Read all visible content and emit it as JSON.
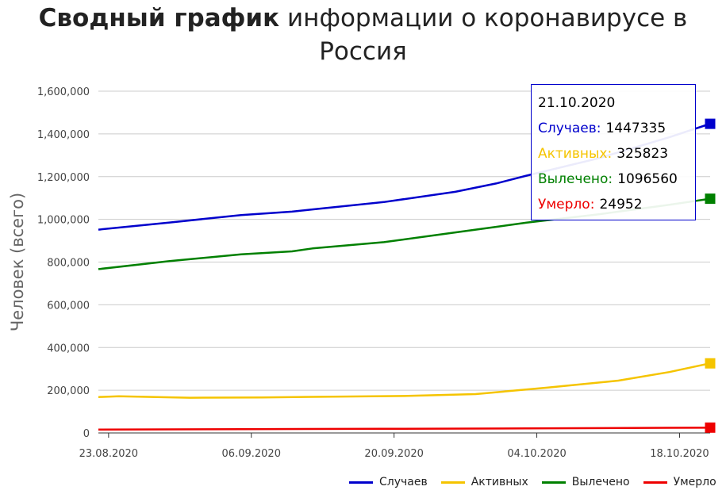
{
  "title": {
    "bold": "Сводный график",
    "rest": " информации о коронавирусе в Россия"
  },
  "tooltip": {
    "date": "21.10.2020",
    "rows": [
      {
        "label": "Случаев:",
        "value": "1447335",
        "color": "#0000cc"
      },
      {
        "label": "Активных:",
        "value": "325823",
        "color": "#f5c400"
      },
      {
        "label": "Вылечено:",
        "value": "1096560",
        "color": "#008000"
      },
      {
        "label": "Умерло:",
        "value": "24952",
        "color": "#ee0000"
      }
    ]
  },
  "chart_data": {
    "type": "line",
    "ylabel": "Человек (всего)",
    "ylim": [
      0,
      1600000
    ],
    "yticks": [
      0,
      200000,
      400000,
      600000,
      800000,
      1000000,
      1200000,
      1400000,
      1600000
    ],
    "ytick_labels": [
      "0",
      "200,000",
      "400,000",
      "600,000",
      "800,000",
      "1,000,000",
      "1,200,000",
      "1,400,000",
      "1,600,000"
    ],
    "xticks": [
      "23.08.2020",
      "06.09.2020",
      "20.09.2020",
      "04.10.2020",
      "18.10.2020"
    ],
    "x_tick_dates": [
      "2020-08-23",
      "2020-09-06",
      "2020-09-20",
      "2020-10-04",
      "2020-10-18"
    ],
    "x_start": "2020-08-22",
    "x_end": "2020-10-21",
    "grid": "horizontal",
    "legend_position": "bottom-right",
    "series": [
      {
        "name": "Случаев",
        "color": "#0000cc",
        "points": [
          [
            "2020-08-22",
            951897
          ],
          [
            "2020-08-29",
            985346
          ],
          [
            "2020-09-05",
            1020310
          ],
          [
            "2020-09-10",
            1036197
          ],
          [
            "2020-09-12",
            1046370
          ],
          [
            "2020-09-19",
            1081152
          ],
          [
            "2020-09-26",
            1128836
          ],
          [
            "2020-09-30",
            1167805
          ],
          [
            "2020-10-03",
            1204502
          ],
          [
            "2020-10-10",
            1285084
          ],
          [
            "2020-10-17",
            1384235
          ],
          [
            "2020-10-21",
            1447335
          ]
        ]
      },
      {
        "name": "Активных",
        "color": "#f5c400",
        "points": [
          [
            "2020-08-22",
            168000
          ],
          [
            "2020-08-24",
            172000
          ],
          [
            "2020-08-31",
            165000
          ],
          [
            "2020-09-07",
            166000
          ],
          [
            "2020-09-14",
            170000
          ],
          [
            "2020-09-21",
            173000
          ],
          [
            "2020-09-28",
            182000
          ],
          [
            "2020-10-05",
            212000
          ],
          [
            "2020-10-12",
            245000
          ],
          [
            "2020-10-17",
            285000
          ],
          [
            "2020-10-21",
            325823
          ]
        ]
      },
      {
        "name": "Вылечено",
        "color": "#008000",
        "points": [
          [
            "2020-08-22",
            767000
          ],
          [
            "2020-08-29",
            805000
          ],
          [
            "2020-09-05",
            836000
          ],
          [
            "2020-09-10",
            850000
          ],
          [
            "2020-09-12",
            864000
          ],
          [
            "2020-09-19",
            893000
          ],
          [
            "2020-09-26",
            939000
          ],
          [
            "2020-09-30",
            965000
          ],
          [
            "2020-10-03",
            985000
          ],
          [
            "2020-10-10",
            1023000
          ],
          [
            "2020-10-17",
            1068000
          ],
          [
            "2020-10-21",
            1096560
          ]
        ]
      },
      {
        "name": "Умерло",
        "color": "#ee0000",
        "points": [
          [
            "2020-08-22",
            16000
          ],
          [
            "2020-09-05",
            17700
          ],
          [
            "2020-09-19",
            19200
          ],
          [
            "2020-10-03",
            21200
          ],
          [
            "2020-10-17",
            24000
          ],
          [
            "2020-10-21",
            24952
          ]
        ]
      }
    ]
  }
}
